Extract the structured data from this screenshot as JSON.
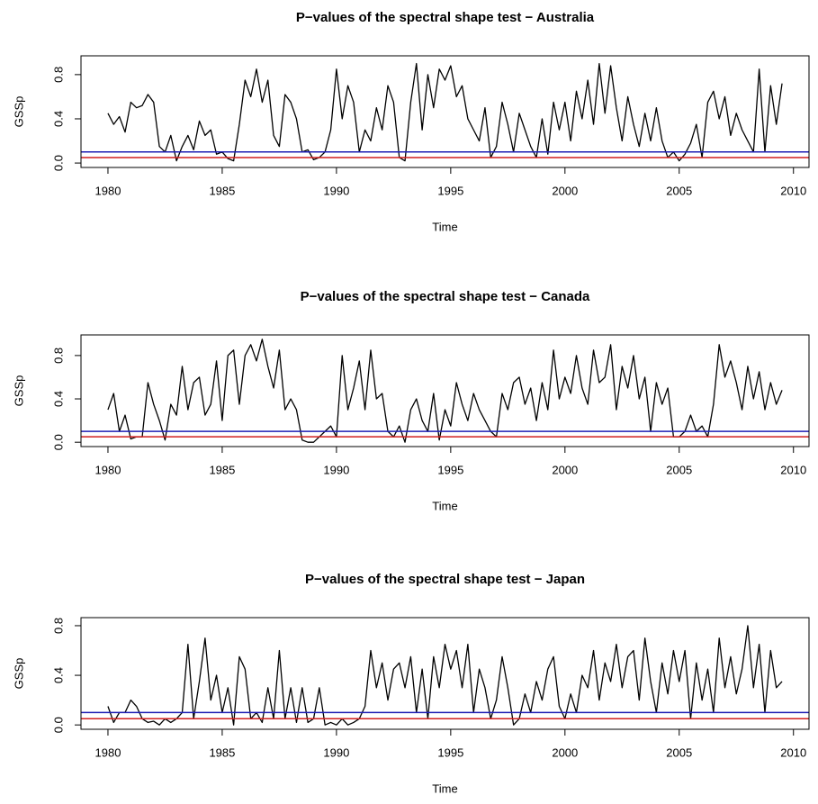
{
  "chart_data": [
    {
      "type": "line",
      "title": "P−values of the spectral shape test − Australia",
      "xlabel": "Time",
      "ylabel": "GSSp",
      "xlim": [
        1978.82,
        2010.68
      ],
      "ylim": [
        -0.04,
        0.97
      ],
      "xticks": [
        1980,
        1985,
        1990,
        1995,
        2000,
        2005,
        2010
      ],
      "yticks": [
        {
          "value": 0,
          "label": "0.0"
        },
        {
          "value": 0.4,
          "label": "0.4"
        },
        {
          "value": 0.8,
          "label": "0.8"
        }
      ],
      "hlines": [
        {
          "value": 0.1,
          "color": "#1f1fb4"
        },
        {
          "value": 0.05,
          "color": "#d11f1f"
        }
      ],
      "x": [
        1980,
        1980.25,
        1980.5,
        1980.75,
        1981,
        1981.25,
        1981.5,
        1981.75,
        1982,
        1982.25,
        1982.5,
        1982.75,
        1983,
        1983.25,
        1983.5,
        1983.75,
        1984,
        1984.25,
        1984.5,
        1984.75,
        1985,
        1985.25,
        1985.5,
        1985.75,
        1986,
        1986.25,
        1986.5,
        1986.75,
        1987,
        1987.25,
        1987.5,
        1987.75,
        1988,
        1988.25,
        1988.5,
        1988.75,
        1989,
        1989.25,
        1989.5,
        1989.75,
        1990,
        1990.25,
        1990.5,
        1990.75,
        1991,
        1991.25,
        1991.5,
        1991.75,
        1992,
        1992.25,
        1992.5,
        1992.75,
        1993,
        1993.25,
        1993.5,
        1993.75,
        1994,
        1994.25,
        1994.5,
        1994.75,
        1995,
        1995.25,
        1995.5,
        1995.75,
        1996,
        1996.25,
        1996.5,
        1996.75,
        1997,
        1997.25,
        1997.5,
        1997.75,
        1998,
        1998.25,
        1998.5,
        1998.75,
        1999,
        1999.25,
        1999.5,
        1999.75,
        2000,
        2000.25,
        2000.5,
        2000.75,
        2001,
        2001.25,
        2001.5,
        2001.75,
        2002,
        2002.25,
        2002.5,
        2002.75,
        2003,
        2003.25,
        2003.5,
        2003.75,
        2004,
        2004.25,
        2004.5,
        2004.75,
        2005,
        2005.25,
        2005.5,
        2005.75,
        2006,
        2006.25,
        2006.5,
        2006.75,
        2007,
        2007.25,
        2007.5,
        2007.75,
        2008,
        2008.25,
        2008.5,
        2008.75,
        2009,
        2009.25,
        2009.5
      ],
      "series": [
        {
          "color": "#000000",
          "values": [
            0.45,
            0.35,
            0.42,
            0.28,
            0.55,
            0.5,
            0.52,
            0.62,
            0.55,
            0.15,
            0.1,
            0.25,
            0.02,
            0.15,
            0.25,
            0.12,
            0.38,
            0.25,
            0.3,
            0.08,
            0.1,
            0.04,
            0.02,
            0.35,
            0.75,
            0.6,
            0.85,
            0.55,
            0.75,
            0.25,
            0.15,
            0.62,
            0.55,
            0.4,
            0.1,
            0.12,
            0.03,
            0.05,
            0.1,
            0.3,
            0.85,
            0.4,
            0.7,
            0.55,
            0.1,
            0.3,
            0.2,
            0.5,
            0.3,
            0.7,
            0.55,
            0.05,
            0.02,
            0.55,
            0.9,
            0.3,
            0.8,
            0.5,
            0.85,
            0.75,
            0.88,
            0.6,
            0.7,
            0.4,
            0.3,
            0.2,
            0.5,
            0.05,
            0.15,
            0.55,
            0.35,
            0.1,
            0.45,
            0.3,
            0.15,
            0.05,
            0.4,
            0.08,
            0.55,
            0.3,
            0.55,
            0.2,
            0.65,
            0.4,
            0.75,
            0.35,
            0.9,
            0.45,
            0.88,
            0.5,
            0.2,
            0.6,
            0.35,
            0.15,
            0.45,
            0.2,
            0.5,
            0.2,
            0.05,
            0.1,
            0.02,
            0.08,
            0.18,
            0.35,
            0.05,
            0.55,
            0.65,
            0.4,
            0.6,
            0.25,
            0.45,
            0.3,
            0.2,
            0.1,
            0.85,
            0.1,
            0.7,
            0.35,
            0.72
          ]
        }
      ]
    },
    {
      "type": "line",
      "title": "P−values of the spectral shape test − Canada",
      "xlabel": "Time",
      "ylabel": "GSSp",
      "xlim": [
        1978.82,
        2010.68
      ],
      "ylim": [
        -0.04,
        0.99
      ],
      "xticks": [
        1980,
        1985,
        1990,
        1995,
        2000,
        2005,
        2010
      ],
      "yticks": [
        {
          "value": 0,
          "label": "0.0"
        },
        {
          "value": 0.4,
          "label": "0.4"
        },
        {
          "value": 0.8,
          "label": "0.8"
        }
      ],
      "hlines": [
        {
          "value": 0.1,
          "color": "#1f1fb4"
        },
        {
          "value": 0.05,
          "color": "#d11f1f"
        }
      ],
      "x": [
        1980,
        1980.25,
        1980.5,
        1980.75,
        1981,
        1981.25,
        1981.5,
        1981.75,
        1982,
        1982.25,
        1982.5,
        1982.75,
        1983,
        1983.25,
        1983.5,
        1983.75,
        1984,
        1984.25,
        1984.5,
        1984.75,
        1985,
        1985.25,
        1985.5,
        1985.75,
        1986,
        1986.25,
        1986.5,
        1986.75,
        1987,
        1987.25,
        1987.5,
        1987.75,
        1988,
        1988.25,
        1988.5,
        1988.75,
        1989,
        1989.25,
        1989.5,
        1989.75,
        1990,
        1990.25,
        1990.5,
        1990.75,
        1991,
        1991.25,
        1991.5,
        1991.75,
        1992,
        1992.25,
        1992.5,
        1992.75,
        1993,
        1993.25,
        1993.5,
        1993.75,
        1994,
        1994.25,
        1994.5,
        1994.75,
        1995,
        1995.25,
        1995.5,
        1995.75,
        1996,
        1996.25,
        1996.5,
        1996.75,
        1997,
        1997.25,
        1997.5,
        1997.75,
        1998,
        1998.25,
        1998.5,
        1998.75,
        1999,
        1999.25,
        1999.5,
        1999.75,
        2000,
        2000.25,
        2000.5,
        2000.75,
        2001,
        2001.25,
        2001.5,
        2001.75,
        2002,
        2002.25,
        2002.5,
        2002.75,
        2003,
        2003.25,
        2003.5,
        2003.75,
        2004,
        2004.25,
        2004.5,
        2004.75,
        2005,
        2005.25,
        2005.5,
        2005.75,
        2006,
        2006.25,
        2006.5,
        2006.75,
        2007,
        2007.25,
        2007.5,
        2007.75,
        2008,
        2008.25,
        2008.5,
        2008.75,
        2009,
        2009.25,
        2009.5
      ],
      "series": [
        {
          "color": "#000000",
          "values": [
            0.3,
            0.45,
            0.1,
            0.25,
            0.03,
            0.05,
            0.05,
            0.55,
            0.35,
            0.2,
            0.02,
            0.35,
            0.25,
            0.7,
            0.3,
            0.55,
            0.6,
            0.25,
            0.35,
            0.75,
            0.2,
            0.8,
            0.85,
            0.35,
            0.8,
            0.9,
            0.75,
            0.95,
            0.7,
            0.5,
            0.85,
            0.3,
            0.4,
            0.3,
            0.02,
            0.0,
            0.0,
            0.05,
            0.1,
            0.15,
            0.05,
            0.8,
            0.3,
            0.5,
            0.75,
            0.3,
            0.85,
            0.4,
            0.45,
            0.1,
            0.05,
            0.15,
            0.0,
            0.3,
            0.4,
            0.2,
            0.1,
            0.45,
            0.02,
            0.3,
            0.15,
            0.55,
            0.35,
            0.2,
            0.45,
            0.3,
            0.2,
            0.1,
            0.05,
            0.45,
            0.3,
            0.55,
            0.6,
            0.35,
            0.5,
            0.2,
            0.55,
            0.3,
            0.85,
            0.4,
            0.6,
            0.45,
            0.8,
            0.5,
            0.35,
            0.85,
            0.55,
            0.6,
            0.9,
            0.3,
            0.7,
            0.5,
            0.8,
            0.4,
            0.6,
            0.1,
            0.55,
            0.35,
            0.5,
            0.05,
            0.05,
            0.1,
            0.25,
            0.1,
            0.15,
            0.05,
            0.35,
            0.9,
            0.6,
            0.75,
            0.55,
            0.3,
            0.7,
            0.4,
            0.65,
            0.3,
            0.55,
            0.35,
            0.48
          ]
        }
      ]
    },
    {
      "type": "line",
      "title": "P−values of the spectral shape test − Japan",
      "xlabel": "Time",
      "ylabel": "GSSp",
      "xlim": [
        1978.82,
        2010.68
      ],
      "ylim": [
        -0.035,
        0.865
      ],
      "xticks": [
        1980,
        1985,
        1990,
        1995,
        2000,
        2005,
        2010
      ],
      "yticks": [
        {
          "value": 0,
          "label": "0.0"
        },
        {
          "value": 0.4,
          "label": "0.4"
        },
        {
          "value": 0.8,
          "label": "0.8"
        }
      ],
      "hlines": [
        {
          "value": 0.1,
          "color": "#1f1fb4"
        },
        {
          "value": 0.05,
          "color": "#d11f1f"
        }
      ],
      "x": [
        1980,
        1980.25,
        1980.5,
        1980.75,
        1981,
        1981.25,
        1981.5,
        1981.75,
        1982,
        1982.25,
        1982.5,
        1982.75,
        1983,
        1983.25,
        1983.5,
        1983.75,
        1984,
        1984.25,
        1984.5,
        1984.75,
        1985,
        1985.25,
        1985.5,
        1985.75,
        1986,
        1986.25,
        1986.5,
        1986.75,
        1987,
        1987.25,
        1987.5,
        1987.75,
        1988,
        1988.25,
        1988.5,
        1988.75,
        1989,
        1989.25,
        1989.5,
        1989.75,
        1990,
        1990.25,
        1990.5,
        1990.75,
        1991,
        1991.25,
        1991.5,
        1991.75,
        1992,
        1992.25,
        1992.5,
        1992.75,
        1993,
        1993.25,
        1993.5,
        1993.75,
        1994,
        1994.25,
        1994.5,
        1994.75,
        1995,
        1995.25,
        1995.5,
        1995.75,
        1996,
        1996.25,
        1996.5,
        1996.75,
        1997,
        1997.25,
        1997.5,
        1997.75,
        1998,
        1998.25,
        1998.5,
        1998.75,
        1999,
        1999.25,
        1999.5,
        1999.75,
        2000,
        2000.25,
        2000.5,
        2000.75,
        2001,
        2001.25,
        2001.5,
        2001.75,
        2002,
        2002.25,
        2002.5,
        2002.75,
        2003,
        2003.25,
        2003.5,
        2003.75,
        2004,
        2004.25,
        2004.5,
        2004.75,
        2005,
        2005.25,
        2005.5,
        2005.75,
        2006,
        2006.25,
        2006.5,
        2006.75,
        2007,
        2007.25,
        2007.5,
        2007.75,
        2008,
        2008.25,
        2008.5,
        2008.75,
        2009,
        2009.25,
        2009.5
      ],
      "series": [
        {
          "color": "#000000",
          "values": [
            0.15,
            0.02,
            0.1,
            0.1,
            0.2,
            0.15,
            0.05,
            0.02,
            0.03,
            0.0,
            0.05,
            0.02,
            0.05,
            0.1,
            0.65,
            0.05,
            0.35,
            0.7,
            0.2,
            0.4,
            0.1,
            0.3,
            0.0,
            0.55,
            0.45,
            0.05,
            0.1,
            0.02,
            0.3,
            0.05,
            0.6,
            0.05,
            0.3,
            0.02,
            0.3,
            0.02,
            0.05,
            0.3,
            0.0,
            0.02,
            0.0,
            0.05,
            0.0,
            0.02,
            0.05,
            0.15,
            0.6,
            0.3,
            0.5,
            0.2,
            0.45,
            0.5,
            0.3,
            0.55,
            0.1,
            0.45,
            0.05,
            0.55,
            0.3,
            0.65,
            0.45,
            0.6,
            0.3,
            0.65,
            0.1,
            0.45,
            0.3,
            0.05,
            0.2,
            0.55,
            0.3,
            0.0,
            0.05,
            0.25,
            0.1,
            0.35,
            0.2,
            0.45,
            0.55,
            0.15,
            0.05,
            0.25,
            0.1,
            0.4,
            0.3,
            0.6,
            0.2,
            0.5,
            0.35,
            0.65,
            0.3,
            0.55,
            0.6,
            0.2,
            0.7,
            0.35,
            0.1,
            0.5,
            0.25,
            0.6,
            0.35,
            0.6,
            0.05,
            0.5,
            0.2,
            0.45,
            0.1,
            0.7,
            0.3,
            0.55,
            0.25,
            0.45,
            0.8,
            0.3,
            0.65,
            0.1,
            0.6,
            0.3,
            0.35
          ]
        }
      ]
    }
  ]
}
